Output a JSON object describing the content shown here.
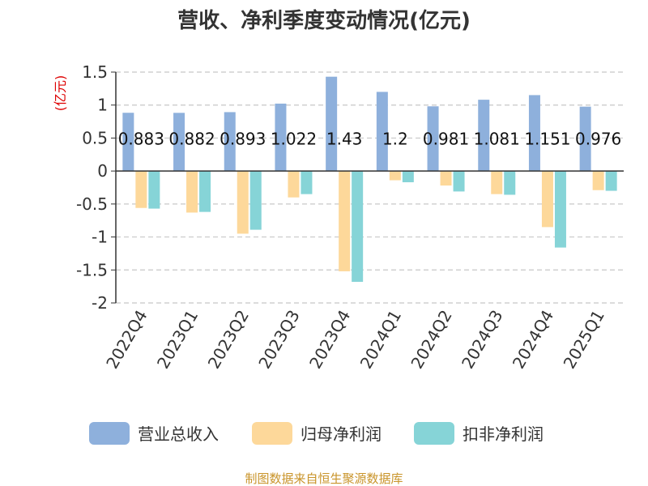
{
  "chart_data": {
    "type": "bar",
    "title": "营收、净利季度变动情况(亿元)",
    "ylabel": "(亿元)",
    "xlabel": "",
    "ylim": [
      -2,
      1.5
    ],
    "yticks": [
      {
        "value": 1.5,
        "label": "1.5"
      },
      {
        "value": 1,
        "label": "1"
      },
      {
        "value": 0.5,
        "label": "0.5"
      },
      {
        "value": 0,
        "label": "0"
      },
      {
        "value": -0.5,
        "label": "-0.5"
      },
      {
        "value": -1,
        "label": "-1"
      },
      {
        "value": -1.5,
        "label": "-1.5"
      },
      {
        "value": -2,
        "label": "-2"
      }
    ],
    "grid": true,
    "legend_position": "bottom",
    "categories": [
      "2022Q4",
      "2023Q1",
      "2023Q2",
      "2023Q3",
      "2023Q4",
      "2024Q1",
      "2024Q2",
      "2024Q3",
      "2024Q4",
      "2025Q1"
    ],
    "series": [
      {
        "name": "营业总收入",
        "color": "#8eb0dc",
        "values": [
          0.883,
          0.882,
          0.893,
          1.022,
          1.43,
          1.2,
          0.981,
          1.081,
          1.151,
          0.976
        ],
        "labels": [
          "0.883",
          "0.882",
          "0.893",
          "1.022",
          "1.43",
          "1.2",
          "0.981",
          "1.081",
          "1.151",
          "0.976"
        ]
      },
      {
        "name": "归母净利润",
        "color": "#fdd89a",
        "values": [
          -0.56,
          -0.63,
          -0.95,
          -0.4,
          -1.52,
          -0.14,
          -0.22,
          -0.35,
          -0.85,
          -0.29
        ]
      },
      {
        "name": "扣非净利润",
        "color": "#86d4d7",
        "values": [
          -0.57,
          -0.62,
          -0.89,
          -0.35,
          -1.68,
          -0.17,
          -0.31,
          -0.36,
          -1.16,
          -0.3
        ]
      }
    ]
  },
  "source": "制图数据来自恒生聚源数据库"
}
